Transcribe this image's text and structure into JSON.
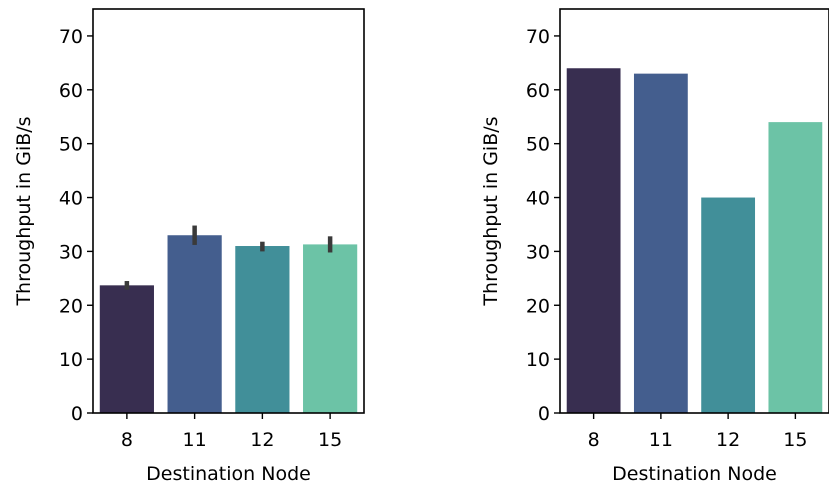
{
  "chart_data": [
    {
      "type": "bar",
      "categories": [
        "8",
        "11",
        "12",
        "15"
      ],
      "values": [
        23.7,
        33.0,
        31.0,
        31.3
      ],
      "error_bars": [
        [
          22.9,
          24.5
        ],
        [
          31.2,
          34.8
        ],
        [
          30.0,
          31.8
        ],
        [
          29.8,
          32.8
        ]
      ],
      "xlabel": "Destination Node",
      "ylabel": "Throughput in GiB/s",
      "ylim": [
        0,
        75
      ],
      "yticks": [
        0,
        10,
        20,
        30,
        40,
        50,
        60,
        70
      ],
      "colors": [
        "#382e50",
        "#445e8e",
        "#418f99",
        "#6cc3a6"
      ],
      "errorbar_color": "#3a3a3a",
      "grid": false
    },
    {
      "type": "bar",
      "categories": [
        "8",
        "11",
        "12",
        "15"
      ],
      "values": [
        64,
        63,
        40,
        54
      ],
      "xlabel": "Destination Node",
      "ylabel": "Throughput in GiB/s",
      "ylim": [
        0,
        75
      ],
      "yticks": [
        0,
        10,
        20,
        30,
        40,
        50,
        60,
        70
      ],
      "colors": [
        "#382e50",
        "#445e8e",
        "#418f99",
        "#6cc3a6"
      ],
      "grid": false
    }
  ]
}
